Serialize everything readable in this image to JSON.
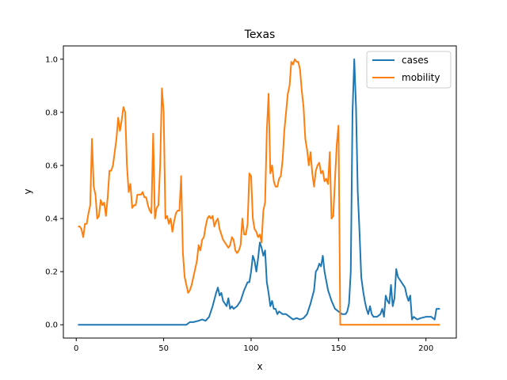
{
  "chart_data": {
    "type": "line",
    "title": "Texas",
    "xlabel": "x",
    "ylabel": "y",
    "xlim": [
      -7.35,
      217.35
    ],
    "ylim": [
      -0.05,
      1.05
    ],
    "xticks": [
      0,
      50,
      100,
      150,
      200
    ],
    "xtick_labels": [
      "0",
      "50",
      "100",
      "150",
      "200"
    ],
    "yticks": [
      0.0,
      0.2,
      0.4,
      0.6,
      0.8,
      1.0
    ],
    "ytick_labels": [
      "0.0",
      "0.2",
      "0.4",
      "0.6",
      "0.8",
      "1.0"
    ],
    "grid": false,
    "legend_position": "top-right",
    "series": [
      {
        "name": "cases",
        "color": "#1f77b4",
        "points": [
          [
            1,
            0
          ],
          [
            10,
            0
          ],
          [
            20,
            0
          ],
          [
            30,
            0
          ],
          [
            40,
            0
          ],
          [
            50,
            0
          ],
          [
            60,
            0
          ],
          [
            63,
            0
          ],
          [
            65,
            0.01
          ],
          [
            67,
            0.01
          ],
          [
            70,
            0.015
          ],
          [
            72,
            0.02
          ],
          [
            74,
            0.015
          ],
          [
            76,
            0.03
          ],
          [
            78,
            0.07
          ],
          [
            80,
            0.12
          ],
          [
            81,
            0.14
          ],
          [
            82,
            0.11
          ],
          [
            83,
            0.12
          ],
          [
            84,
            0.09
          ],
          [
            86,
            0.07
          ],
          [
            87,
            0.1
          ],
          [
            88,
            0.06
          ],
          [
            89,
            0.07
          ],
          [
            90,
            0.06
          ],
          [
            92,
            0.07
          ],
          [
            94,
            0.09
          ],
          [
            96,
            0.13
          ],
          [
            98,
            0.16
          ],
          [
            99,
            0.16
          ],
          [
            100,
            0.2
          ],
          [
            101,
            0.26
          ],
          [
            102,
            0.24
          ],
          [
            103,
            0.2
          ],
          [
            104,
            0.25
          ],
          [
            105,
            0.31
          ],
          [
            106,
            0.29
          ],
          [
            107,
            0.26
          ],
          [
            108,
            0.28
          ],
          [
            109,
            0.16
          ],
          [
            110,
            0.12
          ],
          [
            111,
            0.07
          ],
          [
            112,
            0.09
          ],
          [
            113,
            0.06
          ],
          [
            114,
            0.06
          ],
          [
            115,
            0.04
          ],
          [
            116,
            0.05
          ],
          [
            118,
            0.04
          ],
          [
            120,
            0.04
          ],
          [
            122,
            0.03
          ],
          [
            124,
            0.02
          ],
          [
            126,
            0.025
          ],
          [
            128,
            0.02
          ],
          [
            130,
            0.025
          ],
          [
            132,
            0.04
          ],
          [
            134,
            0.08
          ],
          [
            136,
            0.13
          ],
          [
            137,
            0.2
          ],
          [
            138,
            0.21
          ],
          [
            139,
            0.23
          ],
          [
            140,
            0.22
          ],
          [
            141,
            0.26
          ],
          [
            142,
            0.2
          ],
          [
            144,
            0.13
          ],
          [
            146,
            0.09
          ],
          [
            148,
            0.06
          ],
          [
            150,
            0.05
          ],
          [
            152,
            0.04
          ],
          [
            154,
            0.04
          ],
          [
            155,
            0.05
          ],
          [
            156,
            0.08
          ],
          [
            157,
            0.2
          ],
          [
            158,
            0.8
          ],
          [
            159,
            1.0
          ],
          [
            160,
            0.82
          ],
          [
            161,
            0.5
          ],
          [
            162,
            0.35
          ],
          [
            163,
            0.18
          ],
          [
            164,
            0.13
          ],
          [
            165,
            0.09
          ],
          [
            166,
            0.06
          ],
          [
            167,
            0.04
          ],
          [
            168,
            0.07
          ],
          [
            169,
            0.04
          ],
          [
            170,
            0.03
          ],
          [
            172,
            0.03
          ],
          [
            174,
            0.04
          ],
          [
            175,
            0.06
          ],
          [
            176,
            0.03
          ],
          [
            177,
            0.11
          ],
          [
            178,
            0.09
          ],
          [
            179,
            0.08
          ],
          [
            180,
            0.15
          ],
          [
            181,
            0.07
          ],
          [
            182,
            0.1
          ],
          [
            183,
            0.21
          ],
          [
            184,
            0.18
          ],
          [
            186,
            0.16
          ],
          [
            188,
            0.14
          ],
          [
            189,
            0.11
          ],
          [
            190,
            0.09
          ],
          [
            191,
            0.11
          ],
          [
            192,
            0.02
          ],
          [
            193,
            0.03
          ],
          [
            195,
            0.02
          ],
          [
            197,
            0.025
          ],
          [
            200,
            0.03
          ],
          [
            203,
            0.03
          ],
          [
            205,
            0.02
          ],
          [
            206,
            0.06
          ],
          [
            208,
            0.06
          ]
        ]
      },
      {
        "name": "mobility",
        "color": "#ff7f0e",
        "points": [
          [
            1,
            0.37
          ],
          [
            2,
            0.37
          ],
          [
            3,
            0.36
          ],
          [
            4,
            0.33
          ],
          [
            5,
            0.38
          ],
          [
            6,
            0.38
          ],
          [
            7,
            0.42
          ],
          [
            8,
            0.45
          ],
          [
            9,
            0.7
          ],
          [
            10,
            0.52
          ],
          [
            11,
            0.49
          ],
          [
            12,
            0.4
          ],
          [
            13,
            0.41
          ],
          [
            14,
            0.47
          ],
          [
            15,
            0.45
          ],
          [
            16,
            0.46
          ],
          [
            17,
            0.41
          ],
          [
            18,
            0.48
          ],
          [
            19,
            0.58
          ],
          [
            20,
            0.58
          ],
          [
            21,
            0.6
          ],
          [
            22,
            0.65
          ],
          [
            23,
            0.7
          ],
          [
            24,
            0.78
          ],
          [
            25,
            0.73
          ],
          [
            26,
            0.77
          ],
          [
            27,
            0.82
          ],
          [
            28,
            0.8
          ],
          [
            29,
            0.6
          ],
          [
            30,
            0.5
          ],
          [
            31,
            0.53
          ],
          [
            32,
            0.44
          ],
          [
            33,
            0.45
          ],
          [
            34,
            0.45
          ],
          [
            35,
            0.49
          ],
          [
            36,
            0.49
          ],
          [
            37,
            0.49
          ],
          [
            38,
            0.5
          ],
          [
            39,
            0.48
          ],
          [
            40,
            0.48
          ],
          [
            41,
            0.45
          ],
          [
            42,
            0.43
          ],
          [
            43,
            0.42
          ],
          [
            44,
            0.72
          ],
          [
            45,
            0.4
          ],
          [
            46,
            0.44
          ],
          [
            47,
            0.45
          ],
          [
            48,
            0.6
          ],
          [
            49,
            0.89
          ],
          [
            50,
            0.8
          ],
          [
            51,
            0.4
          ],
          [
            52,
            0.41
          ],
          [
            53,
            0.38
          ],
          [
            54,
            0.4
          ],
          [
            55,
            0.35
          ],
          [
            56,
            0.39
          ],
          [
            57,
            0.42
          ],
          [
            58,
            0.43
          ],
          [
            59,
            0.43
          ],
          [
            60,
            0.56
          ],
          [
            61,
            0.27
          ],
          [
            62,
            0.18
          ],
          [
            63,
            0.15
          ],
          [
            64,
            0.12
          ],
          [
            65,
            0.13
          ],
          [
            66,
            0.15
          ],
          [
            67,
            0.18
          ],
          [
            68,
            0.21
          ],
          [
            69,
            0.24
          ],
          [
            70,
            0.3
          ],
          [
            71,
            0.28
          ],
          [
            72,
            0.32
          ],
          [
            73,
            0.33
          ],
          [
            74,
            0.37
          ],
          [
            75,
            0.4
          ],
          [
            76,
            0.41
          ],
          [
            77,
            0.4
          ],
          [
            78,
            0.41
          ],
          [
            79,
            0.37
          ],
          [
            80,
            0.39
          ],
          [
            81,
            0.4
          ],
          [
            82,
            0.36
          ],
          [
            83,
            0.34
          ],
          [
            84,
            0.32
          ],
          [
            85,
            0.31
          ],
          [
            86,
            0.3
          ],
          [
            87,
            0.29
          ],
          [
            88,
            0.3
          ],
          [
            89,
            0.33
          ],
          [
            90,
            0.32
          ],
          [
            91,
            0.28
          ],
          [
            92,
            0.27
          ],
          [
            93,
            0.28
          ],
          [
            94,
            0.3
          ],
          [
            95,
            0.4
          ],
          [
            96,
            0.34
          ],
          [
            97,
            0.34
          ],
          [
            98,
            0.38
          ],
          [
            99,
            0.57
          ],
          [
            100,
            0.56
          ],
          [
            101,
            0.4
          ],
          [
            102,
            0.36
          ],
          [
            103,
            0.35
          ],
          [
            104,
            0.33
          ],
          [
            105,
            0.34
          ],
          [
            106,
            0.31
          ],
          [
            107,
            0.43
          ],
          [
            108,
            0.46
          ],
          [
            109,
            0.73
          ],
          [
            110,
            0.87
          ],
          [
            111,
            0.57
          ],
          [
            112,
            0.6
          ],
          [
            113,
            0.54
          ],
          [
            114,
            0.52
          ],
          [
            115,
            0.52
          ],
          [
            116,
            0.55
          ],
          [
            117,
            0.56
          ],
          [
            118,
            0.62
          ],
          [
            119,
            0.73
          ],
          [
            120,
            0.8
          ],
          [
            121,
            0.87
          ],
          [
            122,
            0.9
          ],
          [
            123,
            0.99
          ],
          [
            124,
            0.98
          ],
          [
            125,
            1.0
          ],
          [
            126,
            0.99
          ],
          [
            127,
            0.99
          ],
          [
            128,
            0.96
          ],
          [
            129,
            0.88
          ],
          [
            130,
            0.82
          ],
          [
            131,
            0.7
          ],
          [
            132,
            0.66
          ],
          [
            133,
            0.6
          ],
          [
            134,
            0.65
          ],
          [
            135,
            0.57
          ],
          [
            136,
            0.52
          ],
          [
            137,
            0.58
          ],
          [
            138,
            0.6
          ],
          [
            139,
            0.61
          ],
          [
            140,
            0.57
          ],
          [
            141,
            0.58
          ],
          [
            142,
            0.54
          ],
          [
            143,
            0.55
          ],
          [
            144,
            0.53
          ],
          [
            145,
            0.65
          ],
          [
            146,
            0.4
          ],
          [
            147,
            0.41
          ],
          [
            148,
            0.55
          ],
          [
            149,
            0.68
          ],
          [
            150,
            0.75
          ],
          [
            151,
            0.0
          ],
          [
            155,
            0.0
          ],
          [
            160,
            0.0
          ],
          [
            170,
            0.0
          ],
          [
            180,
            0.0
          ],
          [
            190,
            0.0
          ],
          [
            200,
            0.0
          ],
          [
            208,
            0.0
          ]
        ]
      }
    ]
  }
}
